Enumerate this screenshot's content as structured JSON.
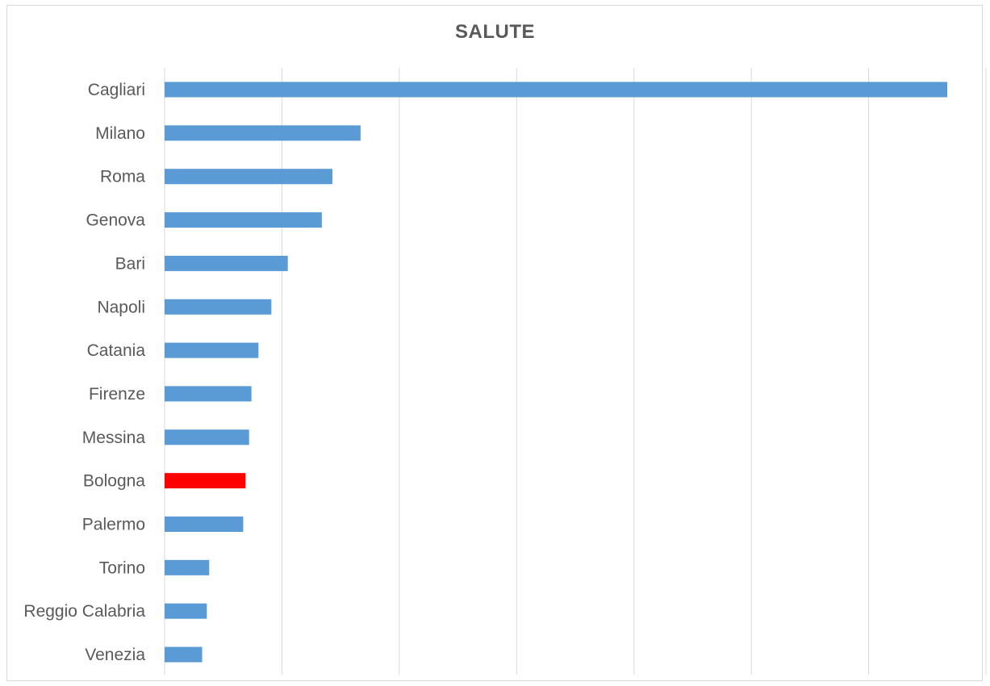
{
  "chart_data": {
    "type": "bar",
    "orientation": "horizontal",
    "title": "SALUTE",
    "xlabel": "",
    "ylabel": "",
    "categories": [
      "Cagliari",
      "Milano",
      "Roma",
      "Genova",
      "Bari",
      "Napoli",
      "Catania",
      "Firenze",
      "Messina",
      "Bologna",
      "Palermo",
      "Torino",
      "Reggio Calabria",
      "Venezia"
    ],
    "values": [
      6.67,
      1.67,
      1.43,
      1.34,
      1.05,
      0.91,
      0.8,
      0.74,
      0.72,
      0.69,
      0.67,
      0.38,
      0.36,
      0.32
    ],
    "xlim": [
      0,
      7
    ],
    "gridlines": "vertical",
    "grid_step": 1,
    "tick_labels_shown": false,
    "colors": {
      "default": "#5b9bd5",
      "highlight": "#ff0000",
      "highlight_category": "Bologna",
      "gridline": "#d9d9d9",
      "text": "#595959"
    }
  }
}
